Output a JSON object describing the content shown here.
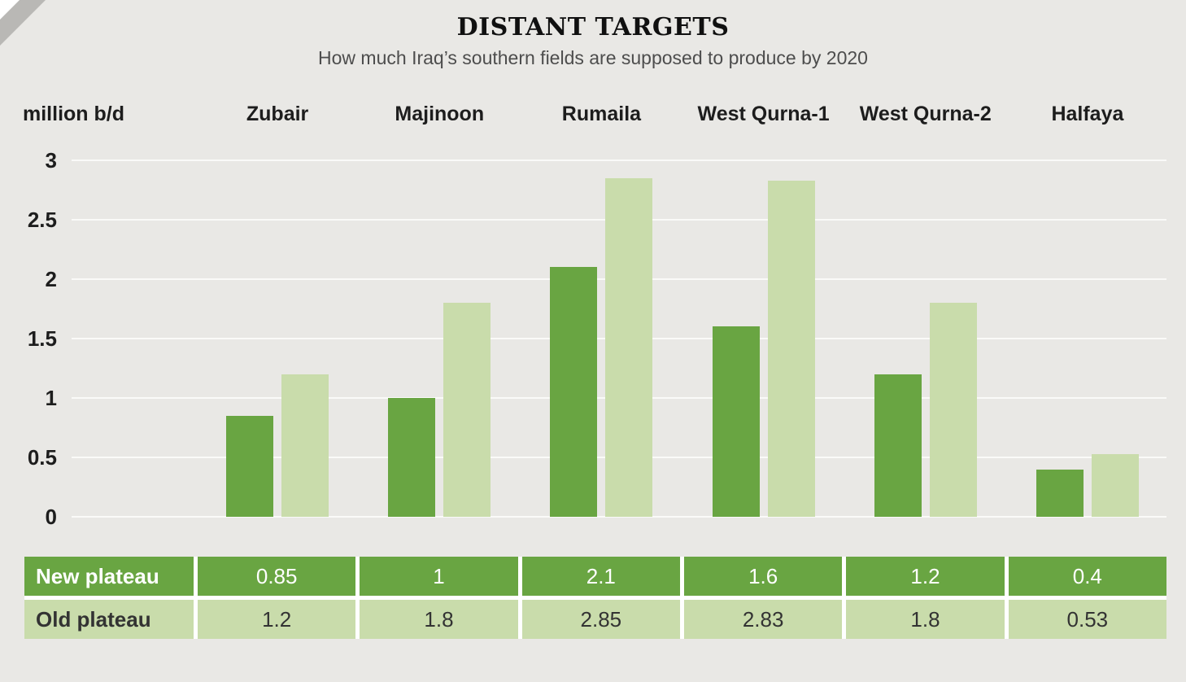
{
  "chart_data": {
    "type": "bar",
    "title": "DISTANT TARGETS",
    "subtitle": "How much Iraq’s southern fields are supposed to produce by 2020",
    "ylabel": "million b/d",
    "ylim": [
      0,
      3
    ],
    "yticks": [
      3,
      2.5,
      2,
      1.5,
      1,
      0.5,
      0
    ],
    "grid": true,
    "legend_position": "table-below",
    "categories": [
      "Zubair",
      "Majinoon",
      "Rumaila",
      "West Qurna-1",
      "West Qurna-2",
      "Halfaya"
    ],
    "series": [
      {
        "name": "New plateau",
        "values": [
          0.85,
          1,
          2.1,
          1.6,
          1.2,
          0.4
        ],
        "color": "#69a542",
        "text_color": "#ffffff"
      },
      {
        "name": "Old plateau",
        "values": [
          1.2,
          1.8,
          2.85,
          2.83,
          1.8,
          0.53
        ],
        "color": "#c9dcab",
        "text_color": "#333333"
      }
    ]
  }
}
